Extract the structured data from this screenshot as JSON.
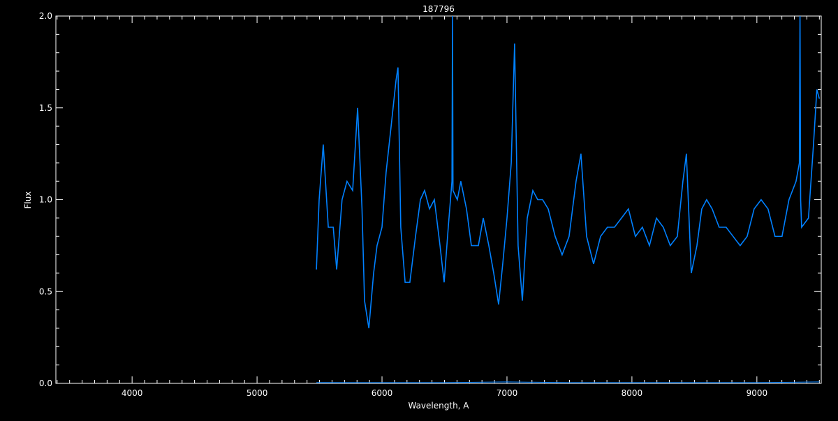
{
  "chart_data": {
    "type": "line",
    "title": "187796",
    "xlabel": "Wavelength, A",
    "ylabel": "Flux",
    "xlim": [
      3390,
      9515
    ],
    "ylim": [
      0,
      2.0
    ],
    "xticks": [
      4000,
      5000,
      6000,
      7000,
      8000,
      9000
    ],
    "yticks": [
      "0.0",
      "0.5",
      "1.0",
      "1.5",
      "2.0"
    ],
    "grid": false,
    "colors": {
      "background": "#000000",
      "axes": "#ffffff",
      "flux": "#0080ff",
      "error": "#0080ff"
    },
    "series": [
      {
        "role": "flux",
        "x": [
          5475,
          5497,
          5530,
          5570,
          5610,
          5637,
          5680,
          5720,
          5765,
          5805,
          5840,
          5860,
          5895,
          5933,
          5960,
          6000,
          6033,
          6073,
          6112,
          6128,
          6150,
          6185,
          6223,
          6268,
          6307,
          6341,
          6380,
          6419,
          6464,
          6497,
          6530,
          6560,
          6564,
          6568,
          6603,
          6631,
          6676,
          6715,
          6771,
          6810,
          6855,
          6894,
          6933,
          6966,
          7000,
          7034,
          7061,
          7089,
          7123,
          7162,
          7207,
          7246,
          7285,
          7330,
          7386,
          7441,
          7497,
          7553,
          7592,
          7637,
          7693,
          7749,
          7804,
          7860,
          7916,
          7972,
          8028,
          8084,
          8140,
          8196,
          8251,
          8307,
          8363,
          8408,
          8436,
          8475,
          8520,
          8559,
          8598,
          8642,
          8698,
          8754,
          8810,
          8866,
          8922,
          8978,
          9034,
          9089,
          9145,
          9201,
          9257,
          9313,
          9340,
          9345,
          9350,
          9358,
          9413,
          9453,
          9480,
          9500
        ],
        "y": [
          0.62,
          1.0,
          1.3,
          0.85,
          0.85,
          0.62,
          1.0,
          1.1,
          1.05,
          1.5,
          0.95,
          0.45,
          0.3,
          0.6,
          0.75,
          0.85,
          1.15,
          1.4,
          1.65,
          1.72,
          0.85,
          0.55,
          0.55,
          0.8,
          1.0,
          1.05,
          0.95,
          1.0,
          0.75,
          0.55,
          0.85,
          1.1,
          2.0,
          1.05,
          1.0,
          1.1,
          0.95,
          0.75,
          0.75,
          0.9,
          0.75,
          0.6,
          0.43,
          0.65,
          0.9,
          1.2,
          1.85,
          0.75,
          0.45,
          0.9,
          1.05,
          1.0,
          1.0,
          0.95,
          0.8,
          0.7,
          0.8,
          1.1,
          1.25,
          0.8,
          0.65,
          0.8,
          0.85,
          0.85,
          0.9,
          0.95,
          0.8,
          0.85,
          0.75,
          0.9,
          0.85,
          0.75,
          0.8,
          1.1,
          1.25,
          0.6,
          0.75,
          0.95,
          1.0,
          0.95,
          0.85,
          0.85,
          0.8,
          0.75,
          0.8,
          0.95,
          1.0,
          0.95,
          0.8,
          0.8,
          1.0,
          1.1,
          1.2,
          2.0,
          1.0,
          0.85,
          0.9,
          1.3,
          1.6,
          1.55
        ]
      },
      {
        "role": "error",
        "x": [
          5475,
          6000,
          6500,
          7000,
          7500,
          8000,
          8500,
          9000,
          9500
        ],
        "y": [
          0.005,
          0.004,
          0.004,
          0.008,
          0.004,
          0.004,
          0.004,
          0.004,
          0.008
        ]
      }
    ]
  }
}
